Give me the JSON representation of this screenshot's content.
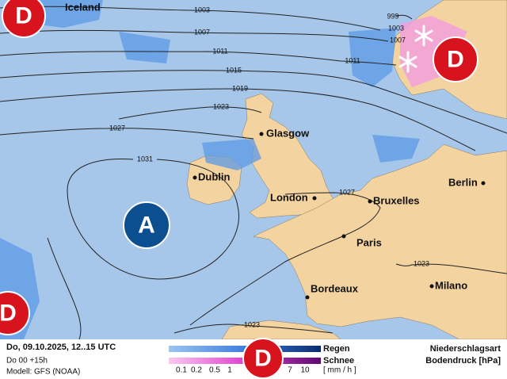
{
  "map": {
    "cities": [
      "Iceland",
      "Glasgow",
      "Dublin",
      "London",
      "Bruxelles",
      "Berlin",
      "Paris",
      "Bordeaux",
      "Milano"
    ],
    "pressure_centers": [
      "D",
      "D",
      "D",
      "A"
    ],
    "isobars": [
      1003,
      1007,
      1011,
      1015,
      1019,
      1023,
      1027,
      1031,
      999,
      1003,
      1007,
      1011,
      1027,
      1023,
      1023
    ]
  },
  "footer": {
    "date": "Do, 09.10.2025, 12..15 UTC",
    "run": "Do 00 +15h",
    "model": "Modell: GFS (NOAA)",
    "legend_symbol": "D",
    "legend": {
      "rain": "Regen",
      "snow": "Schnee",
      "unit": "[ mm / h ]",
      "ticks": [
        0.1,
        0.2,
        0.5,
        1,
        7,
        10
      ]
    },
    "type_label": "Niederschlagsart",
    "pressure_label": "Bodendruck [hPa]"
  }
}
